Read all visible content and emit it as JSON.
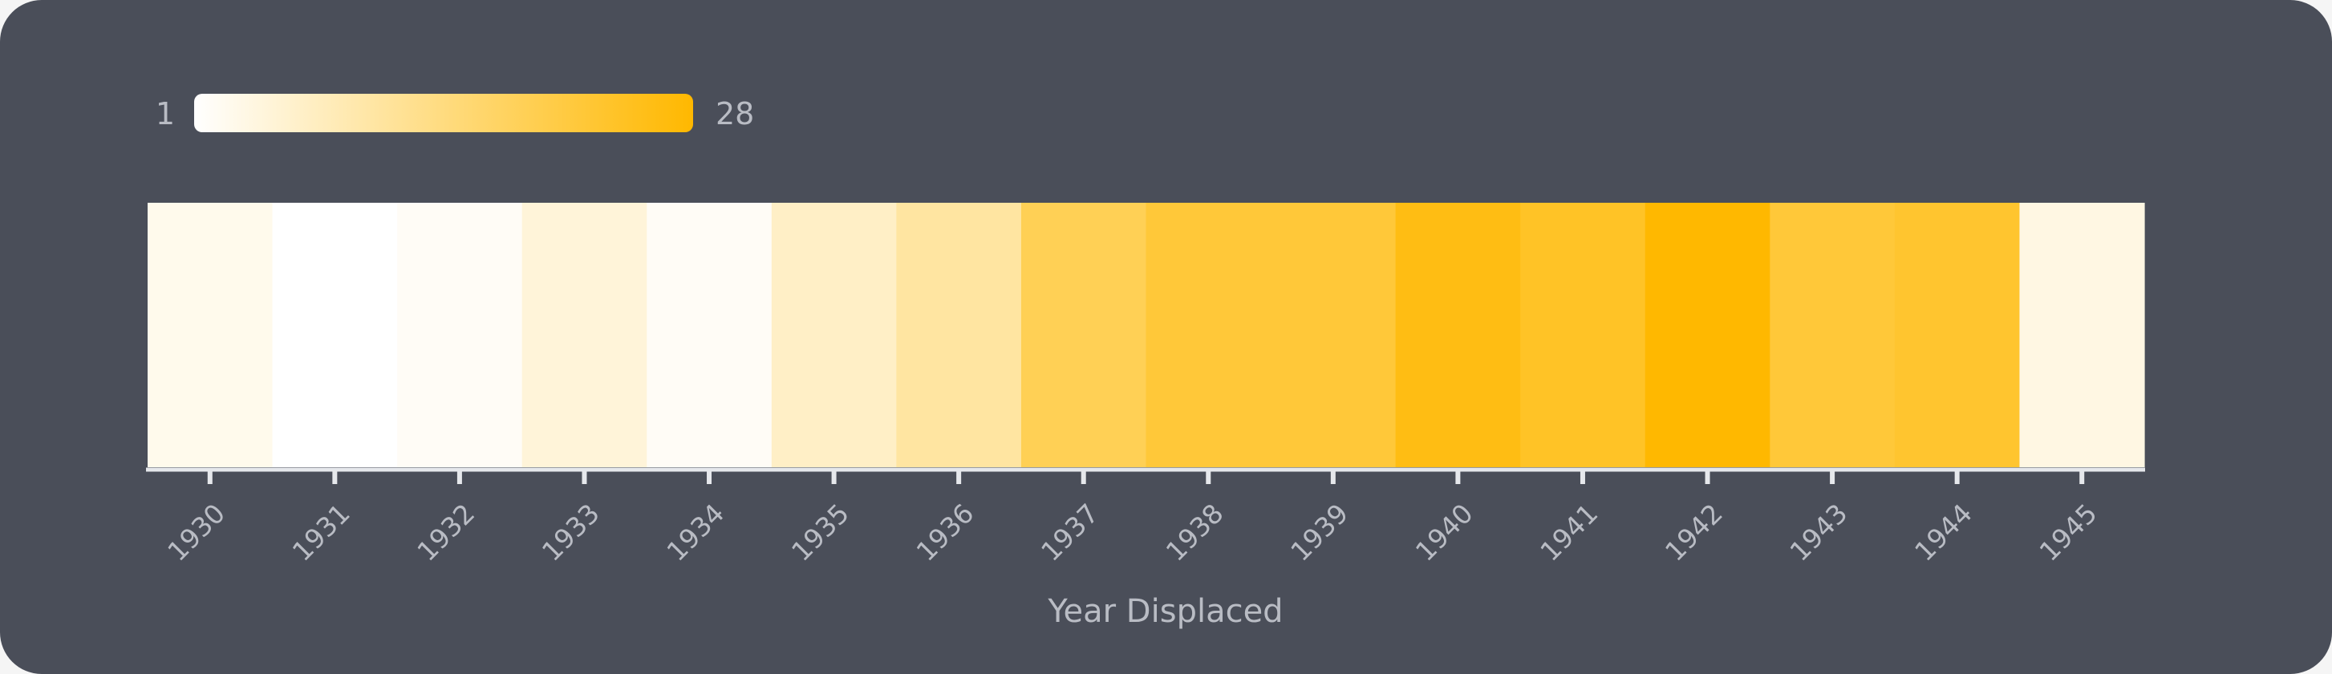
{
  "chart_data": {
    "type": "heatmap",
    "xlabel": "Year Displaced",
    "ylabel": "",
    "categories": [
      "1930",
      "1931",
      "1932",
      "1933",
      "1934",
      "1935",
      "1936",
      "1937",
      "1938",
      "1939",
      "1940",
      "1941",
      "1942",
      "1943",
      "1944",
      "1945"
    ],
    "values": [
      3,
      1,
      2,
      5,
      2,
      7,
      11,
      19,
      22,
      22,
      26,
      24,
      28,
      22,
      23,
      4
    ],
    "color_scale": {
      "min": 1,
      "max": 28,
      "min_label": "1",
      "max_label": "28",
      "min_color": "#ffffff",
      "max_color": "#ffb800"
    },
    "grid": false,
    "legend": "top-left"
  },
  "colors": {
    "background": "#4a4e59",
    "axis_line": "#e6e8ec",
    "text": "#b9bcc4"
  }
}
